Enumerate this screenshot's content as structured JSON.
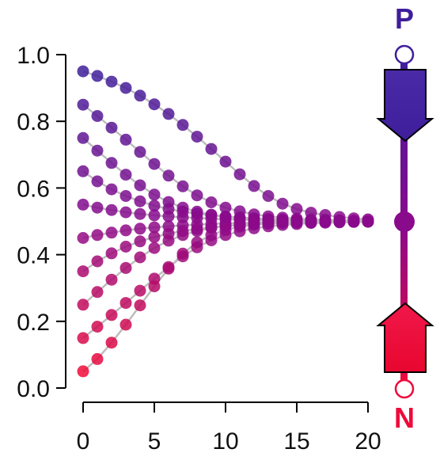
{
  "chart_data": {
    "type": "scatter",
    "title": "",
    "xlabel": "",
    "ylabel": "",
    "xlim": [
      0,
      20
    ],
    "ylim": [
      0,
      1
    ],
    "x_ticks": [
      "0",
      "5",
      "10",
      "15",
      "20"
    ],
    "y_ticks": [
      "0.0",
      "0.2",
      "0.4",
      "0.6",
      "0.8",
      "1.0"
    ],
    "grid": false,
    "legend": "none",
    "x": [
      0,
      1,
      2,
      3,
      4,
      5,
      6,
      7,
      8,
      9,
      10,
      11,
      12,
      13,
      14,
      15,
      16,
      17,
      18,
      19,
      20
    ],
    "series": [
      {
        "values": [
          0.95,
          0.936,
          0.919,
          0.9,
          0.877,
          0.851,
          0.822,
          0.789,
          0.754,
          0.717,
          0.679,
          0.641,
          0.606,
          0.576,
          0.553,
          0.537,
          0.526,
          0.519,
          0.513,
          0.509,
          0.506
        ]
      },
      {
        "values": [
          0.85,
          0.816,
          0.781,
          0.745,
          0.708,
          0.672,
          0.637,
          0.605,
          0.578,
          0.557,
          0.541,
          0.53,
          0.521,
          0.515,
          0.511,
          0.508,
          0.505,
          0.504,
          0.503,
          0.502,
          0.501
        ]
      },
      {
        "values": [
          0.75,
          0.712,
          0.675,
          0.64,
          0.608,
          0.58,
          0.558,
          0.541,
          0.529,
          0.52,
          0.514,
          0.51,
          0.507,
          0.505,
          0.503,
          0.502,
          0.502,
          0.501,
          0.501,
          0.501,
          0.5
        ]
      },
      {
        "values": [
          0.65,
          0.62,
          0.596,
          0.576,
          0.56,
          0.547,
          0.537,
          0.529,
          0.523,
          0.518,
          0.514,
          0.511,
          0.509,
          0.507,
          0.505,
          0.504,
          0.503,
          0.502,
          0.502,
          0.501,
          0.501
        ]
      },
      {
        "values": [
          0.55,
          0.541,
          0.534,
          0.527,
          0.522,
          0.518,
          0.515,
          0.512,
          0.51,
          0.508,
          0.506,
          0.505,
          0.504,
          0.503,
          0.503,
          0.502,
          0.502,
          0.501,
          0.501,
          0.501,
          0.501
        ]
      },
      {
        "values": [
          0.45,
          0.459,
          0.466,
          0.473,
          0.478,
          0.482,
          0.485,
          0.488,
          0.49,
          0.492,
          0.494,
          0.495,
          0.496,
          0.497,
          0.497,
          0.498,
          0.498,
          0.499,
          0.499,
          0.499,
          0.499
        ]
      },
      {
        "values": [
          0.35,
          0.38,
          0.404,
          0.424,
          0.44,
          0.453,
          0.463,
          0.471,
          0.477,
          0.482,
          0.486,
          0.489,
          0.491,
          0.493,
          0.495,
          0.496,
          0.497,
          0.498,
          0.498,
          0.499,
          0.499
        ]
      },
      {
        "values": [
          0.25,
          0.288,
          0.325,
          0.36,
          0.392,
          0.42,
          0.442,
          0.459,
          0.471,
          0.48,
          0.486,
          0.49,
          0.493,
          0.495,
          0.497,
          0.498,
          0.498,
          0.499,
          0.499,
          0.499,
          0.5
        ]
      },
      {
        "values": [
          0.15,
          0.184,
          0.219,
          0.255,
          0.292,
          0.328,
          0.363,
          0.395,
          0.422,
          0.443,
          0.459,
          0.47,
          0.479,
          0.485,
          0.489,
          0.492,
          0.495,
          0.496,
          0.497,
          0.498,
          0.499
        ]
      },
      {
        "values": [
          0.05,
          0.087,
          0.136,
          0.19,
          0.248,
          0.305,
          0.358,
          0.403,
          0.437,
          0.459,
          0.474,
          0.484,
          0.49,
          0.494,
          0.496,
          0.497,
          0.498,
          0.499,
          0.499,
          0.5,
          0.5
        ]
      }
    ]
  },
  "diagram": {
    "top_label": "P",
    "bottom_label": "N",
    "colors": {
      "top": "#3f1e9b",
      "middle": "#8a0a8c",
      "bottom": "#ee0a3a"
    }
  }
}
